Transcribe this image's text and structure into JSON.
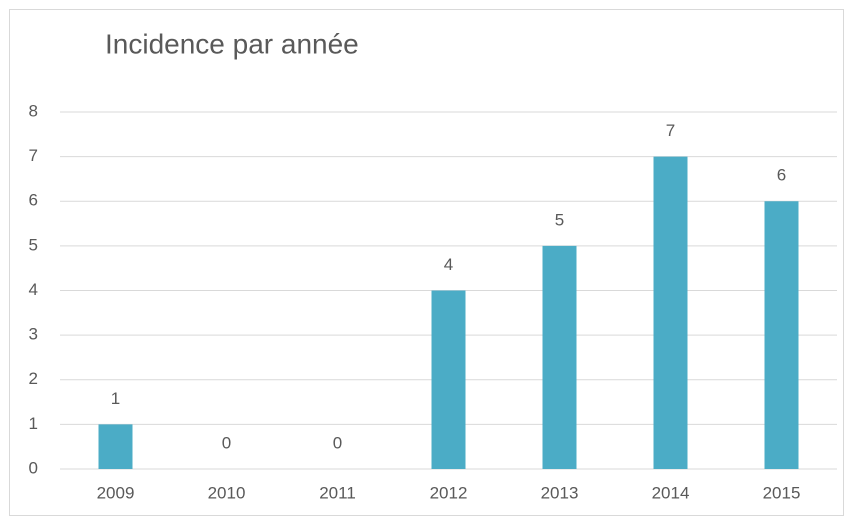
{
  "chart_data": {
    "type": "bar",
    "title": "Incidence par année",
    "categories": [
      "2009",
      "2010",
      "2011",
      "2012",
      "2013",
      "2014",
      "2015"
    ],
    "values": [
      1,
      0,
      0,
      4,
      5,
      7,
      6
    ],
    "color": "#4bacc6",
    "ylim": [
      0,
      8
    ],
    "yticks": [
      0,
      1,
      2,
      3,
      4,
      5,
      6,
      7,
      8
    ],
    "grid": true
  }
}
